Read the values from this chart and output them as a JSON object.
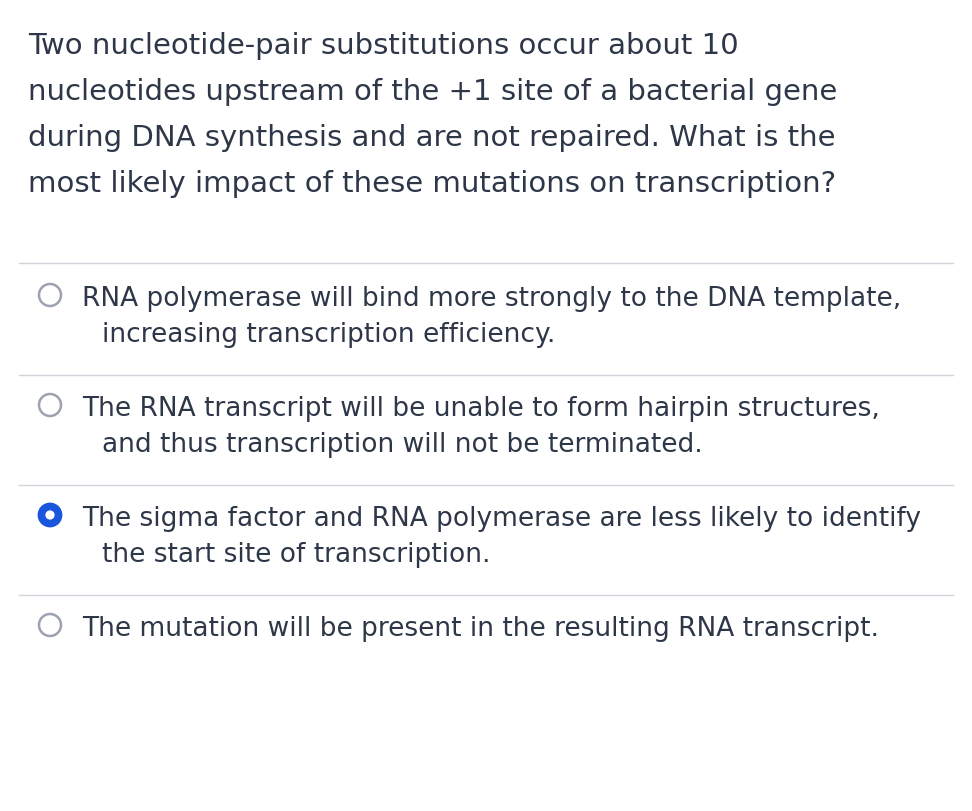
{
  "background_color": "#ffffff",
  "question_lines": [
    "Two nucleotide-pair substitutions occur about 10",
    "nucleotides upstream of the +1 site of a bacterial gene",
    "during DNA synthesis and are not repaired. What is the",
    "most likely impact of these mutations on transcription?"
  ],
  "question_fontsize": 21,
  "question_color": "#2d3748",
  "options": [
    {
      "line1": "RNA polymerase will bind more strongly to the DNA template,",
      "line2": "increasing transcription efficiency.",
      "selected": false,
      "two_lines": true
    },
    {
      "line1": "The RNA transcript will be unable to form hairpin structures,",
      "line2": "and thus transcription will not be terminated.",
      "selected": false,
      "two_lines": true
    },
    {
      "line1": "The sigma factor and RNA polymerase are less likely to identify",
      "line2": "the start site of transcription.",
      "selected": true,
      "two_lines": true
    },
    {
      "line1": "The mutation will be present in the resulting RNA transcript.",
      "line2": "",
      "selected": false,
      "two_lines": false
    }
  ],
  "option_fontsize": 19,
  "option_color": "#2d3748",
  "selected_color_fill": "#1a56db",
  "selected_color_edge": "#1a56db",
  "unselected_color_fill": "#ffffff",
  "unselected_color_edge": "#9ca3af",
  "separator_color": "#d1d5db",
  "separator_linewidth": 1.0,
  "fig_width": 9.72,
  "fig_height": 8.12,
  "dpi": 100
}
